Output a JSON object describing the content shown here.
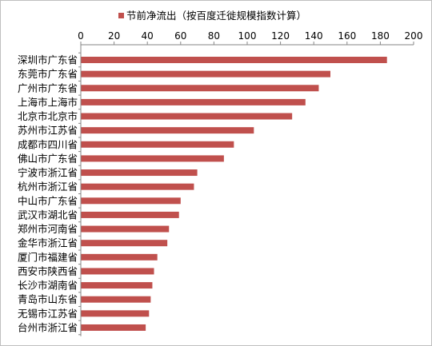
{
  "chart_data": {
    "type": "bar",
    "orientation": "horizontal",
    "title": "",
    "xlabel": "",
    "ylabel": "",
    "xlim": [
      0,
      200
    ],
    "xticks": [
      0,
      20,
      40,
      60,
      80,
      100,
      120,
      140,
      160,
      180,
      200
    ],
    "x_axis_position": "top",
    "grid": false,
    "legend_position": "top",
    "categories": [
      "深圳市广东省",
      "东莞市广东省",
      "广州市广东省",
      "上海市上海市",
      "北京市北京市",
      "苏州市江苏省",
      "成都市四川省",
      "佛山市广东省",
      "宁波市浙江省",
      "杭州市浙江省",
      "中山市广东省",
      "武汉市湖北省",
      "郑州市河南省",
      "金华市浙江省",
      "厦门市福建省",
      "西安市陕西省",
      "长沙市湖南省",
      "青岛市山东省",
      "无锡市江苏省",
      "台州市浙江省"
    ],
    "series": [
      {
        "name": "节前净流出（按百度迁徙规模指数计算）",
        "color": "#c0504d",
        "values": [
          184,
          150,
          143,
          135,
          127,
          104,
          92,
          86,
          70,
          68,
          60,
          59,
          53,
          52,
          46,
          44,
          43,
          42,
          41,
          39
        ]
      }
    ]
  }
}
